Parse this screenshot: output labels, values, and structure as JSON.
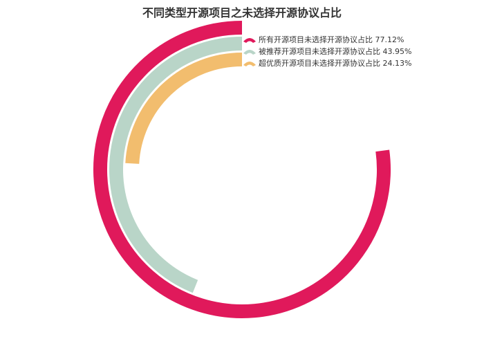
{
  "chart_data": {
    "type": "pie",
    "title": "不同类型开源项目之未选择开源协议占比",
    "legend_position": "top-right",
    "series": [
      {
        "name": "所有开源项目未选择开源协议占比",
        "value": 77.12,
        "label": "所有开源项目未选择开源协议占比  77.12%",
        "color": "#e0195b"
      },
      {
        "name": "被推荐开源项目未选择开源协议占比",
        "value": 43.95,
        "label": "被推荐开源项目未选择开源协议占比 43.95%",
        "color": "#b9d5c8"
      },
      {
        "name": "超优质开源项目未选择开源协议占比",
        "value": 24.13,
        "label": "超优质开源项目未选择开源协议占比 24.13%",
        "color": "#f2bd6e"
      }
    ]
  }
}
